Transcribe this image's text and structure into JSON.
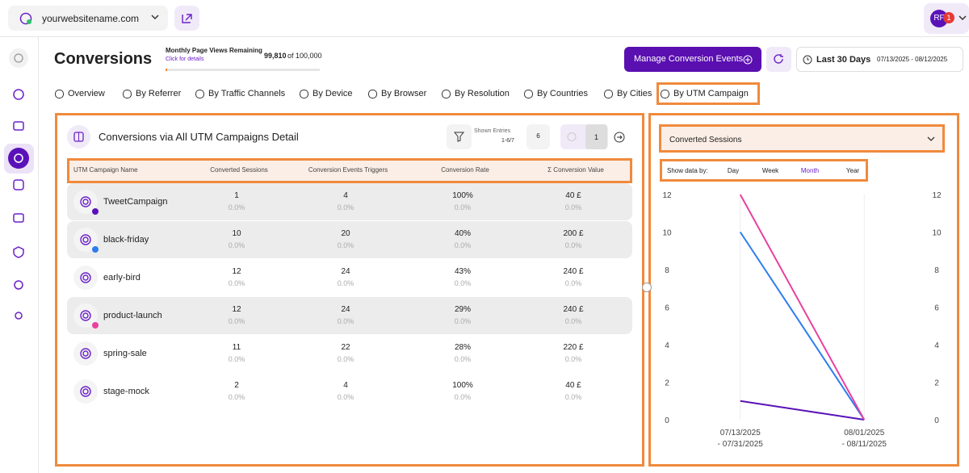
{
  "topbar": {
    "site": "yourwebsitename.com",
    "avatar": "RF",
    "badge": "1"
  },
  "header": {
    "title": "Conversions",
    "quota_label": "Monthly Page Views Remaining",
    "quota_used": "99,810",
    "quota_total": "of 100,000",
    "quota_link": "Click for details",
    "button": "Manage Conversion Events",
    "range": "Last 30 Days",
    "dates": "07/13/2025 - 08/12/2025"
  },
  "tabs": {
    "items": [
      "Overview",
      "By Referrer",
      "By Traffic Channels",
      "By Device",
      "By Browser",
      "By Resolution",
      "By Countries",
      "By Cities",
      "By UTM Campaign"
    ],
    "active": 8
  },
  "table": {
    "title": "Conversions via All UTM Campaigns Detail",
    "shown_entries_label": "Shown Entries",
    "shown_entries": "1-6/7",
    "page_size": "6",
    "page": "1",
    "columns": [
      "UTM Campaign Name",
      "Converted Sessions",
      "Conversion Events Triggers",
      "Conversion Rate",
      "Σ Conversion Value"
    ],
    "rows": [
      {
        "name": "TweetCampaign",
        "cells": [
          "1",
          "4",
          "100%",
          "40 £"
        ],
        "pcts": [
          "0.0%",
          "0.0%",
          "0.0%",
          "0.0%"
        ],
        "highlighted": true,
        "dot": "#5a12b8"
      },
      {
        "name": "black-friday",
        "cells": [
          "10",
          "20",
          "40%",
          "200 £"
        ],
        "pcts": [
          "0.0%",
          "0.0%",
          "0.0%",
          "0.0%"
        ],
        "highlighted": true,
        "dot": "#2d7cf0"
      },
      {
        "name": "early-bird",
        "cells": [
          "12",
          "24",
          "43%",
          "240 £"
        ],
        "pcts": [
          "0.0%",
          "0.0%",
          "0.0%",
          "0.0%"
        ],
        "highlighted": false,
        "dot": null
      },
      {
        "name": "product-launch",
        "cells": [
          "12",
          "24",
          "29%",
          "240 £"
        ],
        "pcts": [
          "0.0%",
          "0.0%",
          "0.0%",
          "0.0%"
        ],
        "highlighted": true,
        "dot": "#e8409f"
      },
      {
        "name": "spring-sale",
        "cells": [
          "11",
          "22",
          "28%",
          "220 £"
        ],
        "pcts": [
          "0.0%",
          "0.0%",
          "0.0%",
          "0.0%"
        ],
        "highlighted": false,
        "dot": null
      },
      {
        "name": "stage-mock",
        "cells": [
          "2",
          "4",
          "100%",
          "40 £"
        ],
        "pcts": [
          "0.0%",
          "0.0%",
          "0.0%",
          "0.0%"
        ],
        "highlighted": false,
        "dot": null
      }
    ]
  },
  "chart_panel": {
    "metric": "Converted Sessions",
    "show_label": "Show data by:",
    "periods": [
      "Day",
      "Week",
      "Month",
      "Year"
    ],
    "active_period": 2
  },
  "chart_data": {
    "type": "line",
    "categories": [
      [
        "07/13/2025",
        "- 07/31/2025"
      ],
      [
        "08/01/2025",
        "- 08/11/2025"
      ]
    ],
    "series": [
      {
        "color": "#5a12b8",
        "values": [
          1,
          0
        ]
      },
      {
        "color": "#2d7cf0",
        "values": [
          10,
          0
        ]
      },
      {
        "color": "#e8409f",
        "values": [
          12,
          0
        ]
      }
    ],
    "ylim": [
      0,
      12
    ],
    "yticks": [
      0,
      2,
      4,
      6,
      8,
      10,
      12
    ],
    "y2lim": [
      0,
      12
    ],
    "y2ticks": [
      0,
      2,
      4,
      6,
      8,
      10,
      12
    ]
  }
}
